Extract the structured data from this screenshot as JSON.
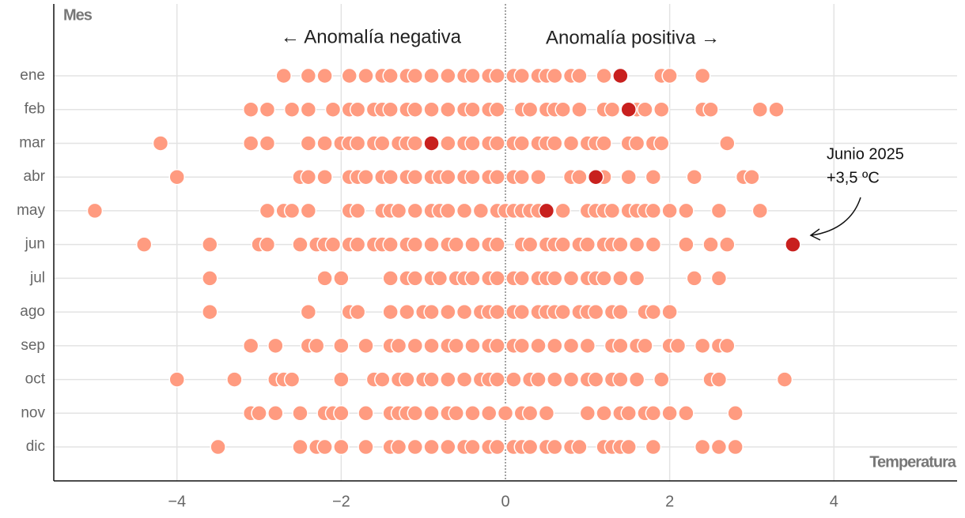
{
  "chart_data": {
    "type": "strip",
    "y_label": "Mes",
    "x_label": "Temperatura",
    "left_note": "← Anomalía negativa",
    "right_note": "Anomalía positiva →",
    "annotation": [
      "Junio 2025",
      "+3,5  ºC"
    ],
    "categories": [
      "ene",
      "feb",
      "mar",
      "abr",
      "may",
      "jun",
      "jul",
      "ago",
      "sep",
      "oct",
      "nov",
      "dic"
    ],
    "color": "#ff9b80",
    "highlight_color": "#c8201e",
    "xlim": [
      -5.5,
      5.5
    ],
    "xticks": [
      {
        "value": -4,
        "label": "−4"
      },
      {
        "value": -2,
        "label": "−2"
      },
      0,
      2,
      4
    ],
    "grid": true,
    "values": [
      [
        -2.7,
        -2.4,
        -2.2,
        -1.9,
        -1.7,
        -1.5,
        -1.4,
        -1.2,
        -1.1,
        -0.9,
        -0.7,
        -0.5,
        -0.4,
        -0.2,
        -0.1,
        0.1,
        0.2,
        0.4,
        0.5,
        0.6,
        0.8,
        0.9,
        1.2,
        1.9,
        2.0,
        2.4
      ],
      [
        -3.1,
        -2.9,
        -2.6,
        -2.4,
        -2.1,
        -1.9,
        -1.8,
        -1.6,
        -1.5,
        -1.4,
        -1.2,
        -1.1,
        -0.9,
        -0.7,
        -0.5,
        -0.4,
        -0.2,
        -0.1,
        0.2,
        0.3,
        0.5,
        0.6,
        0.7,
        0.9,
        1.2,
        1.3,
        1.6,
        1.7,
        1.9,
        2.4,
        2.5,
        3.1,
        3.3
      ],
      [
        -4.2,
        -3.1,
        -2.9,
        -2.4,
        -2.2,
        -2.0,
        -1.9,
        -1.8,
        -1.6,
        -1.5,
        -1.3,
        -1.2,
        -1.1,
        -0.7,
        -0.5,
        -0.4,
        -0.2,
        -0.1,
        0.1,
        0.2,
        0.4,
        0.5,
        0.6,
        0.8,
        1.0,
        1.1,
        1.2,
        1.5,
        1.6,
        1.8,
        1.9,
        2.7
      ],
      [
        -4.0,
        -2.5,
        -2.4,
        -2.2,
        -1.9,
        -1.8,
        -1.7,
        -1.5,
        -1.4,
        -1.2,
        -1.1,
        -0.9,
        -0.8,
        -0.7,
        -0.5,
        -0.4,
        -0.2,
        -0.1,
        0.1,
        0.2,
        0.4,
        0.8,
        0.9,
        1.2,
        1.5,
        1.8,
        2.3,
        2.9,
        3.0
      ],
      [
        -5.0,
        -2.9,
        -2.7,
        -2.6,
        -2.4,
        -1.9,
        -1.8,
        -1.5,
        -1.4,
        -1.3,
        -1.1,
        -0.9,
        -0.8,
        -0.7,
        -0.5,
        -0.3,
        -0.1,
        0.0,
        0.1,
        0.2,
        0.3,
        0.4,
        0.7,
        1.0,
        1.1,
        1.2,
        1.3,
        1.5,
        1.6,
        1.7,
        1.8,
        2.0,
        2.2,
        2.6,
        3.1
      ],
      [
        -4.4,
        -3.6,
        -3.0,
        -2.9,
        -2.5,
        -2.3,
        -2.2,
        -2.1,
        -1.9,
        -1.8,
        -1.6,
        -1.5,
        -1.4,
        -1.2,
        -1.1,
        -0.9,
        -0.7,
        -0.6,
        -0.4,
        -0.2,
        -0.1,
        0.2,
        0.3,
        0.5,
        0.6,
        0.7,
        0.9,
        1.0,
        1.2,
        1.3,
        1.4,
        1.6,
        1.8,
        2.2,
        2.5,
        2.7
      ],
      [
        -3.6,
        -2.2,
        -2.0,
        -1.4,
        -1.2,
        -1.1,
        -0.9,
        -0.8,
        -0.6,
        -0.5,
        -0.4,
        -0.2,
        -0.1,
        0.1,
        0.2,
        0.4,
        0.5,
        0.6,
        0.8,
        1.0,
        1.1,
        1.2,
        1.4,
        1.6,
        2.3,
        2.6
      ],
      [
        -3.6,
        -2.4,
        -1.9,
        -1.8,
        -1.4,
        -1.2,
        -1.0,
        -0.9,
        -0.7,
        -0.5,
        -0.3,
        -0.2,
        -0.1,
        0.1,
        0.2,
        0.4,
        0.5,
        0.6,
        0.7,
        0.9,
        1.0,
        1.1,
        1.3,
        1.4,
        1.7,
        1.8,
        2.0
      ],
      [
        -3.1,
        -2.8,
        -2.4,
        -2.3,
        -2.0,
        -1.7,
        -1.4,
        -1.3,
        -1.1,
        -0.9,
        -0.7,
        -0.6,
        -0.4,
        -0.2,
        -0.1,
        0.1,
        0.2,
        0.4,
        0.6,
        0.8,
        1.0,
        1.3,
        1.4,
        1.6,
        1.7,
        2.0,
        2.1,
        2.4,
        2.6,
        2.7
      ],
      [
        -4.0,
        -3.3,
        -2.8,
        -2.7,
        -2.6,
        -2.0,
        -1.6,
        -1.5,
        -1.3,
        -1.2,
        -1.0,
        -0.9,
        -0.7,
        -0.5,
        -0.3,
        -0.2,
        -0.1,
        0.1,
        0.3,
        0.4,
        0.6,
        0.8,
        1.0,
        1.1,
        1.3,
        1.4,
        1.6,
        1.9,
        2.5,
        2.6,
        3.4
      ],
      [
        -3.1,
        -3.0,
        -2.8,
        -2.5,
        -2.2,
        -2.1,
        -2.0,
        -1.7,
        -1.4,
        -1.3,
        -1.2,
        -1.1,
        -0.9,
        -0.7,
        -0.6,
        -0.4,
        -0.2,
        0.0,
        0.2,
        0.3,
        0.5,
        1.0,
        1.2,
        1.4,
        1.5,
        1.7,
        1.8,
        2.0,
        2.2,
        2.8
      ],
      [
        -3.5,
        -2.5,
        -2.3,
        -2.2,
        -2.0,
        -1.7,
        -1.4,
        -1.3,
        -1.1,
        -0.9,
        -0.7,
        -0.5,
        -0.4,
        -0.2,
        -0.1,
        0.1,
        0.2,
        0.3,
        0.5,
        0.6,
        0.8,
        0.9,
        1.2,
        1.3,
        1.4,
        1.5,
        1.8,
        2.4,
        2.6,
        2.8
      ]
    ],
    "highlight": [
      1.4,
      1.5,
      -0.9,
      1.1,
      0.5,
      3.5,
      null,
      null,
      null,
      null,
      null,
      null
    ]
  }
}
